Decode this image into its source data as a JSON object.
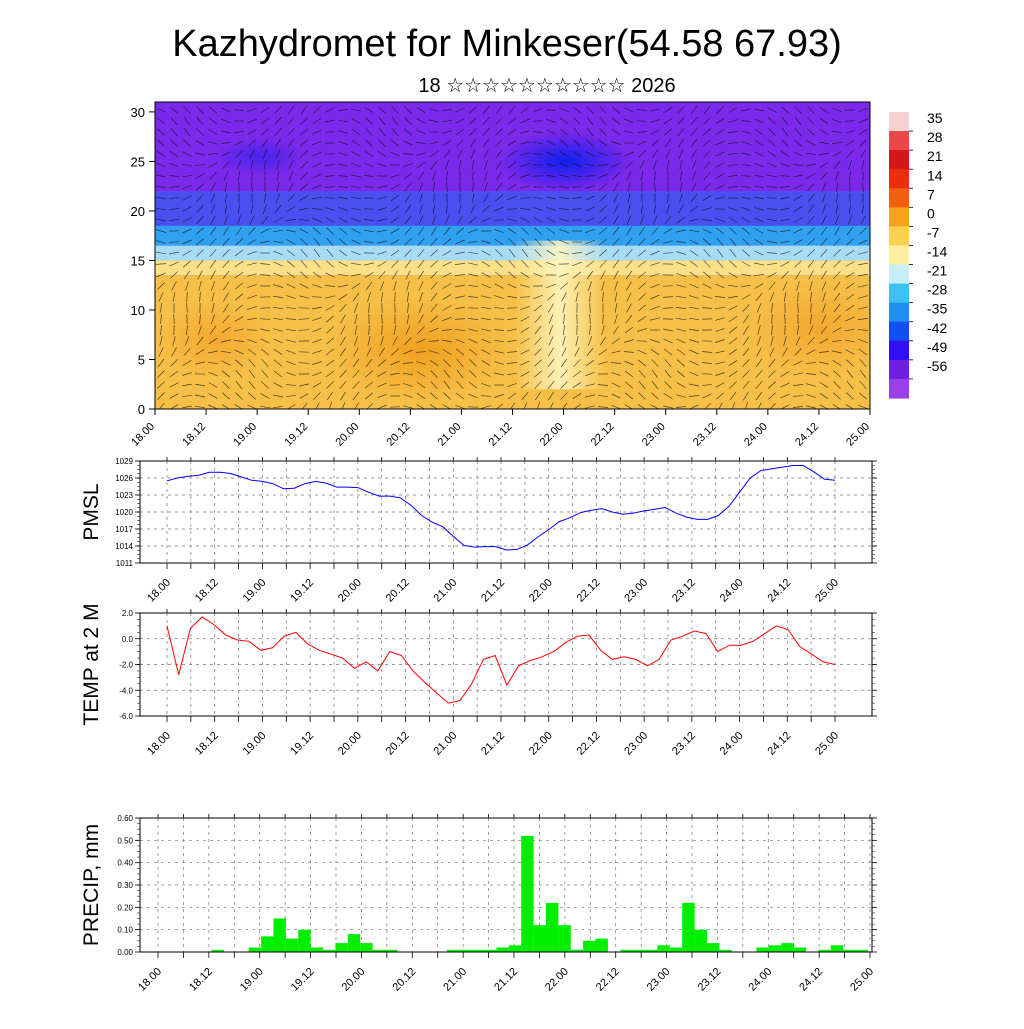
{
  "title": "Kazhydromet for Minkeser(54.58 67.93)",
  "subtitle": "18 ☆☆☆☆☆☆☆☆☆☆ 2026",
  "time_labels": [
    "18.00",
    "18.12",
    "19.00",
    "19.12",
    "20.00",
    "20.12",
    "21.00",
    "21.12",
    "22.00",
    "22.12",
    "23.00",
    "23.12",
    "24.00",
    "24.12",
    "25.00"
  ],
  "colors": {
    "pmsl_line": "#0000ff",
    "temp_line": "#ff0000",
    "precip_bar": "#00ee00"
  },
  "chart_data": [
    {
      "type": "heatmap",
      "name": "cross-section",
      "y_ticks": [
        0,
        5,
        10,
        15,
        20,
        25,
        30
      ],
      "ylim": [
        0,
        31
      ],
      "colorbar_levels": [
        "35",
        "28",
        "21",
        "14",
        "7",
        "0",
        "-7",
        "-14",
        "-21",
        "-28",
        "-35",
        "-42",
        "-49",
        "-56"
      ],
      "colorbar_colors": [
        "#f7d0d0",
        "#e84848",
        "#d01818",
        "#e83010",
        "#f06010",
        "#f8a020",
        "#fcd050",
        "#fff0a0",
        "#c8eef8",
        "#40c0f0",
        "#2090f0",
        "#1050f0",
        "#3010f0",
        "#7020e0",
        "#9a40e8"
      ],
      "overlay": "wind vectors"
    },
    {
      "type": "line",
      "ylabel": "PMSL",
      "y_ticks": [
        "1029",
        "1026",
        "1023",
        "1020",
        "1017",
        "1014",
        "1011"
      ],
      "ylim": [
        1011,
        1029
      ],
      "values": [
        1025.5,
        1026,
        1026.3,
        1026.5,
        1027,
        1027,
        1026.8,
        1026.2,
        1025.6,
        1025.4,
        1025,
        1024.1,
        1024.2,
        1025,
        1025.4,
        1025.1,
        1024.4,
        1024.4,
        1024.3,
        1023.5,
        1022.8,
        1022.8,
        1022.5,
        1021.2,
        1019.4,
        1018.2,
        1017.4,
        1015.7,
        1014.1,
        1013.8,
        1013.9,
        1013.9,
        1013.3,
        1013.4,
        1014.2,
        1015.6,
        1016.9,
        1018.3,
        1019,
        1019.9,
        1020.3,
        1020.6,
        1020,
        1019.6,
        1019.8,
        1020.2,
        1020.5,
        1020.8,
        1019.8,
        1019.1,
        1018.7,
        1018.7,
        1019.4,
        1021,
        1023.5,
        1026,
        1027.3,
        1027.6,
        1027.9,
        1028.2,
        1028.2,
        1027.1,
        1025.8,
        1025.6
      ]
    },
    {
      "type": "line",
      "ylabel": "TEMP at 2 M",
      "y_ticks": [
        "2.0",
        "0.0",
        "-2.0",
        "-4.0",
        "-6.0"
      ],
      "ylim": [
        -6,
        2
      ],
      "values": [
        1,
        -2.8,
        0.8,
        1.7,
        1.1,
        0.3,
        -0.1,
        -0.2,
        -0.9,
        -0.7,
        0.2,
        0.5,
        -0.4,
        -0.9,
        -1.2,
        -1.5,
        -2.3,
        -1.8,
        -2.5,
        -1,
        -1.3,
        -2.5,
        -3.4,
        -4.2,
        -5,
        -4.8,
        -3.5,
        -1.6,
        -1.3,
        -3.6,
        -2.1,
        -1.7,
        -1.4,
        -1,
        -0.3,
        0.2,
        0.3,
        -0.9,
        -1.6,
        -1.4,
        -1.6,
        -2.1,
        -1.6,
        -0.1,
        0.2,
        0.6,
        0.4,
        -1,
        -0.5,
        -0.5,
        -0.2,
        0.4,
        1,
        0.7,
        -0.6,
        -1.2,
        -1.8,
        -2
      ]
    },
    {
      "type": "bar",
      "ylabel": "PRECIP, mm",
      "y_ticks": [
        "0.60",
        "0.50",
        "0.40",
        "0.30",
        "0.20",
        "0.10",
        "0.00"
      ],
      "ylim": [
        0,
        0.6
      ],
      "values": [
        0,
        0,
        0,
        0,
        0.01,
        0,
        0,
        0.02,
        0.07,
        0.15,
        0.06,
        0.1,
        0.02,
        0.01,
        0.04,
        0.08,
        0.04,
        0.01,
        0.01,
        0,
        0,
        0,
        0,
        0.01,
        0.01,
        0.01,
        0.01,
        0.02,
        0.03,
        0.52,
        0.12,
        0.22,
        0.12,
        0.01,
        0.05,
        0.06,
        0,
        0.01,
        0.01,
        0.01,
        0.03,
        0.02,
        0.22,
        0.1,
        0.04,
        0.01,
        0,
        0,
        0.02,
        0.03,
        0.04,
        0.02,
        0,
        0.01,
        0.03,
        0.01,
        0.01
      ]
    }
  ]
}
